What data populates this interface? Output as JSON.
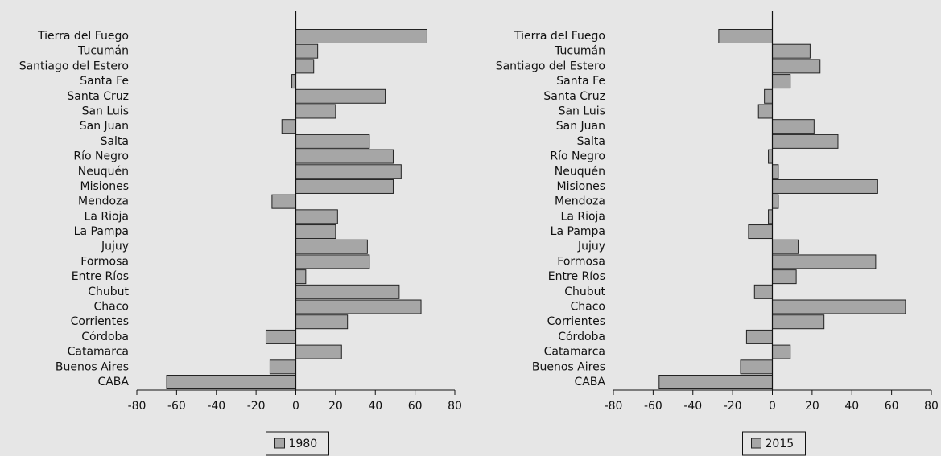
{
  "chart_data": [
    {
      "type": "bar",
      "orientation": "horizontal",
      "categories": [
        "Tierra del Fuego",
        "Tucumán",
        "Santiago del Estero",
        "Santa Fe",
        "Santa Cruz",
        "San Luis",
        "San Juan",
        "Salta",
        "Río Negro",
        "Neuquén",
        "Misiones",
        "Mendoza",
        "La Rioja",
        "La Pampa",
        "Jujuy",
        "Formosa",
        "Entre Ríos",
        "Chubut",
        "Chaco",
        "Corrientes",
        "Córdoba",
        "Catamarca",
        "Buenos Aires",
        "CABA"
      ],
      "series": [
        {
          "name": "1980",
          "color": "#a6a6a6",
          "values": [
            66,
            11,
            9,
            -2,
            45,
            20,
            -7,
            37,
            49,
            53,
            49,
            -12,
            21,
            20,
            36,
            37,
            5,
            52,
            63,
            26,
            -15,
            23,
            -13,
            -65
          ]
        }
      ],
      "xlim": [
        -80,
        80
      ],
      "xticks": [
        -80,
        -60,
        -40,
        -20,
        0,
        20,
        40,
        60,
        80
      ],
      "legend": "bottom"
    },
    {
      "type": "bar",
      "orientation": "horizontal",
      "categories": [
        "Tierra del Fuego",
        "Tucumán",
        "Santiago del Estero",
        "Santa Fe",
        "Santa Cruz",
        "San Luis",
        "San Juan",
        "Salta",
        "Río Negro",
        "Neuquén",
        "Misiones",
        "Mendoza",
        "La Rioja",
        "La Pampa",
        "Jujuy",
        "Formosa",
        "Entre Ríos",
        "Chubut",
        "Chaco",
        "Corrientes",
        "Córdoba",
        "Catamarca",
        "Buenos Aires",
        "CABA"
      ],
      "series": [
        {
          "name": "2015",
          "color": "#a6a6a6",
          "values": [
            -27,
            19,
            24,
            9,
            -4,
            -7,
            21,
            33,
            -2,
            3,
            53,
            3,
            -2,
            -12,
            13,
            52,
            12,
            -9,
            67,
            26,
            -13,
            9,
            -16,
            -57
          ]
        }
      ],
      "xlim": [
        -80,
        80
      ],
      "xticks": [
        -80,
        -60,
        -40,
        -20,
        0,
        20,
        40,
        60,
        80
      ],
      "legend": "bottom"
    }
  ]
}
